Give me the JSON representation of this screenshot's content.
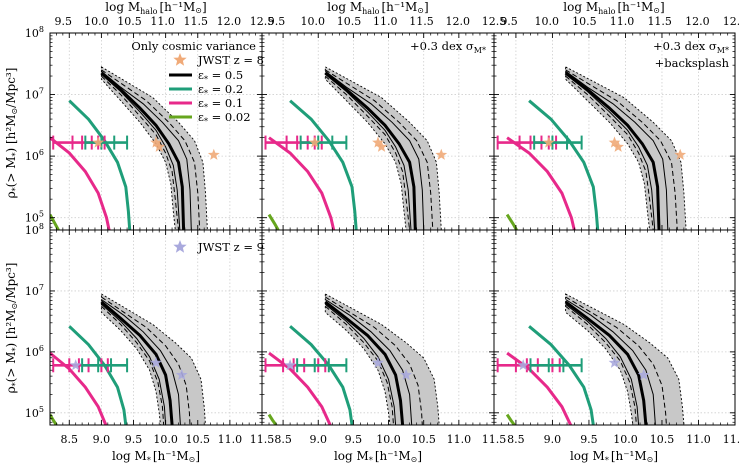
{
  "chart_data": {
    "type": "line",
    "layout": "2x3 panel grid",
    "x_axis_bottom": {
      "label_main": "log M",
      "label_sub": "*",
      "label_unit": "[h⁻¹M",
      "label_sun": "⊙",
      "label_close": "]",
      "range": [
        8.2,
        11.5
      ],
      "ticks": [
        "8.5",
        "9.0",
        "9.5",
        "10.0",
        "10.5",
        "11.0",
        "11.5"
      ],
      "tick_values": [
        8.5,
        9.0,
        9.5,
        10.0,
        10.5,
        11.0,
        11.5
      ]
    },
    "x_axis_top": {
      "label_main": "log M",
      "label_sub": "halo",
      "label_unit": "[h⁻¹M",
      "label_sun": "⊙",
      "label_close": "]",
      "range": [
        9.3,
        12.5
      ],
      "ticks": [
        "9.5",
        "10.0",
        "10.5",
        "11.0",
        "11.5",
        "12.0",
        "12.5"
      ],
      "tick_values": [
        9.5,
        10.0,
        10.5,
        11.0,
        11.5,
        12.0,
        12.5
      ]
    },
    "y_axis": {
      "label": "ρ∗(> M∗) [h²M⊙/Mpc³]",
      "label_rho": "ρ",
      "label_sub": "*",
      "label_mid": "(> M",
      "label_sub2": "*",
      "label_unit": ") [h²M",
      "label_sun": "⊙",
      "label_close": "/Mpc³]",
      "scale": "log",
      "range_log": [
        4.8,
        8.0
      ],
      "tick_exps": [
        "5",
        "6",
        "7",
        "8"
      ]
    },
    "annotations": {
      "panel0": "Only cosmic variance",
      "panel1": "+0.3 dex σ",
      "panel1_sub": "M*",
      "panel2_line1": "+0.3 dex σ",
      "panel2_sub": "M*",
      "panel2_line2": "+backsplash"
    },
    "legend_top": [
      {
        "label": "JWST z = 8",
        "marker": "star",
        "color": "#f0aa78"
      },
      {
        "label": "ε* = 0.5",
        "prefix": "ε",
        "sub": "*",
        "value": " = 0.5",
        "color": "#000000",
        "width": 3
      },
      {
        "label": "ε* = 0.2",
        "prefix": "ε",
        "sub": "*",
        "value": " = 0.2",
        "color": "#1f9e79",
        "width": 3
      },
      {
        "label": "ε* = 0.1",
        "prefix": "ε",
        "sub": "*",
        "value": " = 0.1",
        "color": "#e7298a",
        "width": 3
      },
      {
        "label": "ε* = 0.02",
        "prefix": "ε",
        "sub": "*",
        "value": " = 0.02",
        "color": "#66a61e",
        "width": 3
      }
    ],
    "legend_bottom": {
      "label": "JWST z = 9",
      "marker": "star",
      "color": "#a9a9dd"
    },
    "colors": {
      "eps05": "#000000",
      "eps02": "#1f9e79",
      "eps01": "#e7298a",
      "eps002": "#66a61e",
      "band": "#c8c8c8",
      "star_z8": "#f0aa78",
      "star_z9": "#a9a9dd",
      "grid": "#cfcfcf"
    },
    "offsets": {
      "top": [
        0,
        0.1,
        0.18
      ],
      "bottom": [
        0,
        0.1,
        0.18
      ]
    },
    "series": {
      "top": {
        "band_lower": [
          [
            9.0,
            7.25
          ],
          [
            9.3,
            6.9
          ],
          [
            9.6,
            6.55
          ],
          [
            9.85,
            6.2
          ],
          [
            10.0,
            5.9
          ],
          [
            10.08,
            5.55
          ],
          [
            10.12,
            5.1
          ],
          [
            10.15,
            4.8
          ]
        ],
        "band_upper": [
          [
            9.0,
            7.45
          ],
          [
            9.4,
            7.2
          ],
          [
            9.8,
            6.95
          ],
          [
            10.2,
            6.55
          ],
          [
            10.45,
            6.25
          ],
          [
            10.58,
            5.9
          ],
          [
            10.62,
            5.4
          ],
          [
            10.65,
            4.8
          ]
        ],
        "dash_lower": [
          [
            9.0,
            7.3
          ],
          [
            9.3,
            7.0
          ],
          [
            9.6,
            6.65
          ],
          [
            9.85,
            6.35
          ],
          [
            10.0,
            6.05
          ],
          [
            10.1,
            5.75
          ],
          [
            10.15,
            5.3
          ],
          [
            10.2,
            4.8
          ]
        ],
        "dash_upper": [
          [
            9.0,
            7.4
          ],
          [
            9.35,
            7.15
          ],
          [
            9.7,
            6.9
          ],
          [
            10.05,
            6.55
          ],
          [
            10.3,
            6.25
          ],
          [
            10.45,
            5.9
          ],
          [
            10.5,
            5.4
          ],
          [
            10.53,
            4.8
          ]
        ],
        "thin_lower": [
          [
            9.0,
            7.33
          ],
          [
            9.3,
            7.05
          ],
          [
            9.6,
            6.72
          ],
          [
            9.85,
            6.42
          ],
          [
            10.0,
            6.15
          ],
          [
            10.12,
            5.85
          ],
          [
            10.18,
            5.45
          ],
          [
            10.22,
            4.8
          ]
        ],
        "thin_upper": [
          [
            9.0,
            7.38
          ],
          [
            9.3,
            7.12
          ],
          [
            9.65,
            6.85
          ],
          [
            9.95,
            6.55
          ],
          [
            10.2,
            6.25
          ],
          [
            10.33,
            5.95
          ],
          [
            10.38,
            5.45
          ],
          [
            10.4,
            4.8
          ]
        ],
        "eps05": [
          [
            9.0,
            7.35
          ],
          [
            9.3,
            7.08
          ],
          [
            9.6,
            6.78
          ],
          [
            9.85,
            6.5
          ],
          [
            10.05,
            6.2
          ],
          [
            10.2,
            5.9
          ],
          [
            10.26,
            5.5
          ],
          [
            10.28,
            4.8
          ]
        ],
        "eps02": [
          [
            8.5,
            6.9
          ],
          [
            8.8,
            6.6
          ],
          [
            9.05,
            6.25
          ],
          [
            9.25,
            5.9
          ],
          [
            9.38,
            5.5
          ],
          [
            9.42,
            5.1
          ],
          [
            9.44,
            4.8
          ]
        ],
        "eps01": [
          [
            8.2,
            6.3
          ],
          [
            8.5,
            6.05
          ],
          [
            8.75,
            5.75
          ],
          [
            8.95,
            5.4
          ],
          [
            9.08,
            5.0
          ],
          [
            9.12,
            4.8
          ]
        ],
        "eps002": [
          [
            8.2,
            5.05
          ],
          [
            8.28,
            4.9
          ],
          [
            8.33,
            4.8
          ]
        ],
        "errbar_pink": {
          "y": 6.22,
          "x": [
            8.25,
            8.55,
            8.7,
            8.85,
            8.95,
            9.05
          ]
        },
        "errbar_green": {
          "y": 6.22,
          "x": [
            8.75,
            9.0,
            9.2,
            9.4
          ]
        },
        "stars": [
          [
            8.95,
            6.22
          ],
          [
            9.85,
            6.22
          ],
          [
            9.9,
            6.15
          ],
          [
            10.75,
            6.02
          ]
        ]
      },
      "bottom": {
        "band_lower": [
          [
            9.0,
            6.65
          ],
          [
            9.3,
            6.35
          ],
          [
            9.55,
            6.05
          ],
          [
            9.75,
            5.7
          ],
          [
            9.85,
            5.35
          ],
          [
            9.9,
            5.0
          ],
          [
            9.92,
            4.8
          ]
        ],
        "band_upper": [
          [
            9.0,
            6.95
          ],
          [
            9.4,
            6.7
          ],
          [
            9.8,
            6.45
          ],
          [
            10.15,
            6.15
          ],
          [
            10.4,
            5.9
          ],
          [
            10.55,
            5.55
          ],
          [
            10.6,
            5.1
          ],
          [
            10.62,
            4.8
          ]
        ],
        "dash_lower": [
          [
            9.0,
            6.75
          ],
          [
            9.3,
            6.45
          ],
          [
            9.55,
            6.15
          ],
          [
            9.75,
            5.85
          ],
          [
            9.88,
            5.5
          ],
          [
            9.95,
            5.1
          ],
          [
            9.97,
            4.8
          ]
        ],
        "dash_upper": [
          [
            9.0,
            6.9
          ],
          [
            9.35,
            6.65
          ],
          [
            9.7,
            6.4
          ],
          [
            10.0,
            6.1
          ],
          [
            10.2,
            5.8
          ],
          [
            10.32,
            5.45
          ],
          [
            10.37,
            5.0
          ],
          [
            10.38,
            4.8
          ]
        ],
        "thin_lower": [
          [
            9.0,
            6.78
          ],
          [
            9.3,
            6.5
          ],
          [
            9.55,
            6.22
          ],
          [
            9.75,
            5.92
          ],
          [
            9.9,
            5.55
          ],
          [
            9.98,
            5.1
          ],
          [
            10.0,
            4.8
          ]
        ],
        "thin_upper": [
          [
            9.0,
            6.86
          ],
          [
            9.35,
            6.6
          ],
          [
            9.65,
            6.33
          ],
          [
            9.92,
            6.02
          ],
          [
            10.1,
            5.7
          ],
          [
            10.2,
            5.3
          ],
          [
            10.23,
            4.8
          ]
        ],
        "eps05": [
          [
            9.0,
            6.82
          ],
          [
            9.3,
            6.55
          ],
          [
            9.6,
            6.27
          ],
          [
            9.85,
            5.96
          ],
          [
            10.0,
            5.62
          ],
          [
            10.07,
            5.2
          ],
          [
            10.1,
            4.8
          ]
        ],
        "eps02": [
          [
            8.5,
            6.42
          ],
          [
            8.8,
            6.12
          ],
          [
            9.05,
            5.78
          ],
          [
            9.25,
            5.42
          ],
          [
            9.35,
            5.05
          ],
          [
            9.38,
            4.8
          ]
        ],
        "eps01": [
          [
            8.2,
            5.98
          ],
          [
            8.5,
            5.72
          ],
          [
            8.75,
            5.42
          ],
          [
            8.95,
            5.1
          ],
          [
            9.05,
            4.85
          ],
          [
            9.07,
            4.8
          ]
        ],
        "eps002": [
          [
            8.2,
            4.97
          ],
          [
            8.25,
            4.88
          ],
          [
            8.3,
            4.8
          ]
        ],
        "errbar_pink": {
          "y": 5.78,
          "x": [
            8.25,
            8.5,
            8.65,
            8.8,
            9.0,
            9.1
          ]
        },
        "errbar_green": {
          "y": 5.78,
          "x": [
            8.7,
            8.95,
            9.15,
            9.4
          ]
        },
        "stars": [
          [
            8.6,
            5.78
          ],
          [
            9.85,
            5.82
          ],
          [
            10.25,
            5.62
          ]
        ]
      }
    }
  }
}
